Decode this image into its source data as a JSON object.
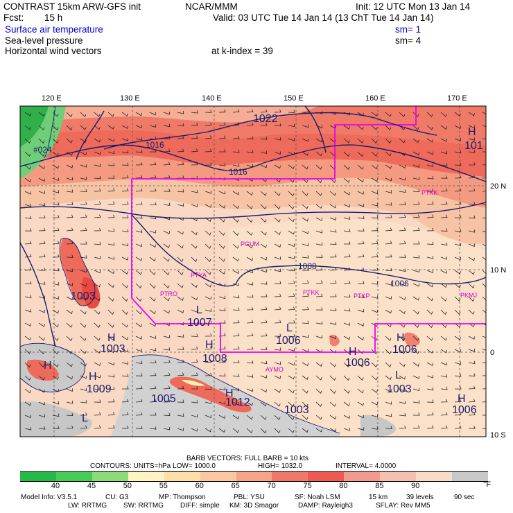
{
  "header": {
    "title": "CONTRAST 15km ARW-GFS init",
    "org": "NCAR/MMM",
    "init": "Init: 12 UTC Mon 13 Jan 14",
    "fcst_label": "Fcst:",
    "fcst_value": "15 h",
    "valid": "Valid: 03 UTC Tue 14 Jan 14 (13 ChT Tue 14 Jan 14)",
    "field1": "Surface air temperature",
    "field1_sm": "sm= 1",
    "field2": "Sea-level pressure",
    "field2_sm": "sm= 4",
    "field3": "Horizontal wind vectors",
    "kindex": "at k-index =  39"
  },
  "map": {
    "lon_labels": [
      "120 E",
      "130 E",
      "140 E",
      "150 E",
      "160 E",
      "170 E"
    ],
    "lat_labels": [
      "20 N",
      "10 N",
      "0",
      "10 S"
    ],
    "isobars": [
      "1022",
      "#024",
      "1016",
      "1016",
      "101",
      "1008",
      "1006",
      "1003",
      "1007",
      "1006",
      "1006",
      "1008",
      "1006",
      "1009",
      "1003",
      "1005",
      "1012",
      "1003",
      "1003",
      "1006"
    ],
    "highs": [
      "H",
      "H",
      "H",
      "H",
      "H",
      "H",
      "H",
      "H",
      "H"
    ],
    "lows": [
      "L",
      "L",
      "L",
      "L"
    ],
    "stations": [
      "PTKK",
      "PGUM",
      "PTYA",
      "PTRO",
      "PTKK",
      "PTKP",
      "PKMJ",
      "AYMO"
    ]
  },
  "footer": {
    "barb_vectors": "BARB VECTORS:  FULL BARB = 10 kts",
    "contours": "CONTOURS:  UNITS=hPa  LOW=  1000.0",
    "high": "HIGH=  1032.0",
    "interval": "INTERVAL=    4.0000",
    "colorbar_labels": [
      "40",
      "45",
      "50",
      "55",
      "60",
      "65",
      "70",
      "75",
      "80",
      "85",
      "90"
    ],
    "colorbar_unit": "°F",
    "colorbar_colors": [
      "#22bb44",
      "#44cc55",
      "#88dd77",
      "#fff3c4",
      "#fde0a8",
      "#fbc6a0",
      "#f5a488",
      "#f07868",
      "#ee5a50",
      "#f39990",
      "#f5c0ae",
      "#f7dcc8",
      "#c8c8c8"
    ],
    "model_row1": [
      "Model Info: V3.5.1",
      "CU: G3",
      "MP: Thompson",
      "PBL: YSU",
      "SF: Noah LSM",
      "15 km",
      "39 levels",
      "90 sec"
    ],
    "model_row2": [
      "LW: RRTMG",
      "SW: RRTMG",
      "DIFF: simple",
      "KM: 3D Smagor",
      "DAMP: Rayleigh3",
      "SFLAY: Rev MM5"
    ]
  }
}
